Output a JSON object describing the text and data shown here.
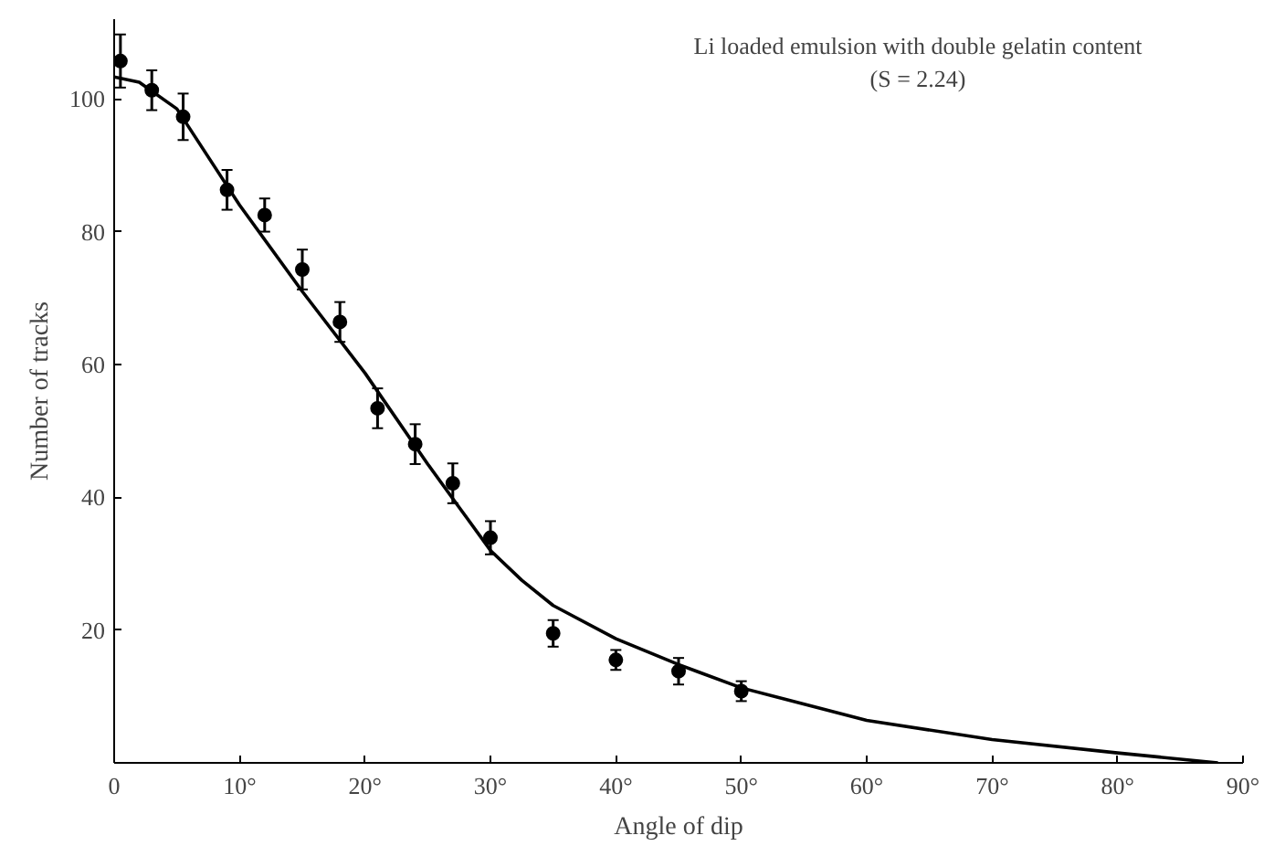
{
  "chart_data": {
    "type": "scatter",
    "xlabel": "Angle of dip",
    "ylabel": "Number of tracks",
    "annotations": [
      "Li loaded emulsion with double gelatin content",
      "(S = 2.24)"
    ],
    "xlim": [
      0,
      90
    ],
    "ylim": [
      0,
      112
    ],
    "xticks": [
      0,
      {
        "value": 10,
        "label": "10°"
      },
      {
        "value": 20,
        "label": "20°"
      },
      {
        "value": 30,
        "label": "30°"
      },
      {
        "value": 40,
        "label": "40°"
      },
      {
        "value": 50,
        "label": "50°"
      },
      {
        "value": 60,
        "label": "60°"
      },
      {
        "value": 70,
        "label": "70°"
      },
      {
        "value": 80,
        "label": "80°"
      },
      {
        "value": 90,
        "label": "90°"
      }
    ],
    "yticks": [
      20,
      40,
      60,
      80,
      100
    ],
    "grid": false,
    "series": [
      {
        "color": "#000000",
        "marker": "circle",
        "x": [
          0.5,
          3,
          5.5,
          9,
          12,
          15,
          18,
          21,
          24,
          27,
          30,
          35,
          40,
          45,
          50
        ],
        "values": [
          105.7,
          101.3,
          97.3,
          86.3,
          82.5,
          74.3,
          66.4,
          53.4,
          48,
          42.1,
          33.9,
          19.5,
          15.5,
          13.8,
          10.8
        ],
        "errors": [
          4,
          3,
          3.5,
          3,
          2.5,
          3,
          3,
          3,
          3,
          3,
          2.5,
          2,
          1.5,
          2,
          1.5
        ]
      },
      {
        "type": "line",
        "color": "#000000",
        "marker": "none",
        "line_style": "solid",
        "x": [
          0,
          2,
          5,
          10,
          15,
          20,
          25,
          27.5,
          30,
          32.5,
          35,
          40,
          45,
          50,
          60,
          70,
          80,
          88
        ],
        "values": [
          103.3,
          102.5,
          98.5,
          84,
          71,
          58.7,
          45,
          38.5,
          32,
          27.5,
          23.7,
          18.7,
          14.8,
          11.3,
          6.4,
          3.5,
          1.5,
          0
        ]
      }
    ]
  }
}
